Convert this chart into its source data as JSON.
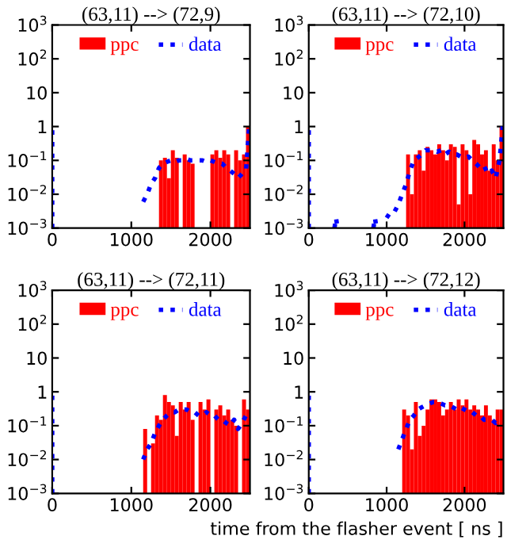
{
  "chart_data": [
    {
      "type": "histogram",
      "title": "(63,11) --> (72,9)",
      "log": "y",
      "xlim": [
        0,
        2500
      ],
      "xticks": [
        0,
        1000,
        2000
      ],
      "ylim": [
        0.001,
        1000
      ],
      "yticks": [
        {
          "value": 0.001,
          "label": "10$^{−3}$"
        },
        {
          "value": 0.01,
          "label": "10$^{−2}$"
        },
        {
          "value": 0.1,
          "label": "10$^{−1}$"
        },
        1,
        10,
        {
          "value": 100,
          "label": "10$^{2}$"
        },
        {
          "value": 1000,
          "label": "10$^{3}$"
        }
      ],
      "legend": "top",
      "grid": false,
      "series": [
        {
          "name": "ppc",
          "color": "#ff0000",
          "bins": [
            1350,
            1400,
            1450,
            1500,
            1550,
            1600,
            1650,
            1700,
            1750,
            1800,
            1850,
            1900,
            1950,
            2000,
            2050,
            2100,
            2150,
            2200,
            2250,
            2300,
            2350,
            2400,
            2450,
            2500
          ],
          "values": [
            0.1,
            0.12,
            0.03,
            0.2,
            0.12,
            null,
            0.15,
            0.1,
            0.08,
            null,
            null,
            null,
            null,
            0.15,
            0.2,
            0.12,
            0.2,
            0.15,
            null,
            0.2,
            0.1,
            0.15,
            1
          ]
        },
        {
          "name": "data",
          "type": "line",
          "line_style": "dotted",
          "color": "#0000ff",
          "x": [
            0,
            0,
            20,
            1150,
            1200,
            1250,
            1300,
            1350,
            1400,
            1450,
            1500,
            1550,
            1600,
            1650,
            1700,
            1750,
            1800,
            1850,
            1900,
            1950,
            2000,
            2050,
            2100,
            2150,
            2200,
            2250,
            2300,
            2350,
            2400,
            2450,
            2490
          ],
          "values": [
            0.001,
            1,
            null,
            0.006,
            0.01,
            0.02,
            0.03,
            0.06,
            0.08,
            0.09,
            0.1,
            0.09,
            0.1,
            0.1,
            0.11,
            0.1,
            0.1,
            0.1,
            0.1,
            0.09,
            0.1,
            0.09,
            0.08,
            0.08,
            0.06,
            0.05,
            0.04,
            0.03,
            0.04,
            0.05,
            1
          ]
        }
      ]
    },
    {
      "type": "histogram",
      "title": "(63,11) --> (72,10)",
      "log": "y",
      "xlim": [
        0,
        2500
      ],
      "xticks": [
        0,
        1000,
        2000
      ],
      "ylim": [
        0.001,
        1000
      ],
      "yticks": [
        {
          "value": 0.001,
          "label": "10$^{−3}$"
        },
        {
          "value": 0.01,
          "label": "10$^{−2}$"
        },
        {
          "value": 0.1,
          "label": "10$^{−1}$"
        },
        1,
        10,
        {
          "value": 100,
          "label": "10$^{2}$"
        },
        {
          "value": 1000,
          "label": "10$^{3}$"
        }
      ],
      "legend": "top",
      "grid": false,
      "series": [
        {
          "name": "ppc",
          "color": "#ff0000",
          "bins": [
            1250,
            1300,
            1350,
            1400,
            1450,
            1500,
            1550,
            1600,
            1650,
            1700,
            1750,
            1800,
            1850,
            1900,
            1950,
            2000,
            2050,
            2100,
            2150,
            2200,
            2250,
            2300,
            2350,
            2400,
            2450,
            2500
          ],
          "values": [
            0.15,
            0.01,
            0.15,
            0.2,
            0.05,
            0.25,
            0.2,
            0.15,
            0.3,
            0.2,
            0.1,
            0.3,
            0.25,
            0.005,
            0.3,
            0.2,
            0.01,
            0.4,
            0.3,
            0.15,
            0.2,
            0.05,
            0.3,
            0.1,
            1
          ]
        },
        {
          "name": "data",
          "type": "line",
          "line_style": "dotted",
          "color": "#0000ff",
          "x": [
            0,
            0,
            20,
            330,
            350,
            370,
            400,
            830,
            850,
            870,
            900,
            1000,
            1050,
            1100,
            1150,
            1200,
            1250,
            1300,
            1350,
            1400,
            1450,
            1500,
            1550,
            1600,
            1650,
            1700,
            1750,
            1800,
            1850,
            1900,
            1950,
            2000,
            2050,
            2100,
            2150,
            2200,
            2250,
            2300,
            2350,
            2400,
            2450,
            2490
          ],
          "values": [
            0.001,
            1,
            null,
            0.001,
            0.002,
            0.001,
            null,
            0.001,
            0.002,
            0.001,
            null,
            0.002,
            0.003,
            0.003,
            0.005,
            0.01,
            0.02,
            0.05,
            0.1,
            0.12,
            0.15,
            0.2,
            0.2,
            0.2,
            0.18,
            0.2,
            0.15,
            0.18,
            0.15,
            0.15,
            0.13,
            0.12,
            0.13,
            0.1,
            0.08,
            0.06,
            0.07,
            0.04,
            0.05,
            0.03,
            0.1,
            1
          ]
        }
      ]
    },
    {
      "type": "histogram",
      "title": "(63,11) --> (72,11)",
      "log": "y",
      "xlim": [
        0,
        2500
      ],
      "xticks": [
        0,
        1000,
        2000
      ],
      "ylim": [
        0.001,
        1000
      ],
      "yticks": [
        {
          "value": 0.001,
          "label": "10$^{−3}$"
        },
        {
          "value": 0.01,
          "label": "10$^{−2}$"
        },
        {
          "value": 0.1,
          "label": "10$^{−1}$"
        },
        1,
        10,
        {
          "value": 100,
          "label": "10$^{2}$"
        },
        {
          "value": 1000,
          "label": "10$^{3}$"
        }
      ],
      "legend": "top",
      "grid": false,
      "series": [
        {
          "name": "ppc",
          "color": "#ff0000",
          "bins": [
            1150,
            1200,
            1250,
            1300,
            1350,
            1400,
            1450,
            1500,
            1550,
            1600,
            1650,
            1700,
            1750,
            1800,
            1850,
            1900,
            1950,
            2000,
            2050,
            2100,
            2150,
            2200,
            2250,
            2300,
            2350,
            2400,
            2450,
            2500
          ],
          "values": [
            0.08,
            null,
            0.03,
            0.2,
            0.15,
            0.8,
            0.5,
            0.4,
            0.05,
            0.5,
            0.3,
            0.5,
            0.15,
            null,
            0.5,
            0.3,
            0.6,
            null,
            0.3,
            0.4,
            0.2,
            0.3,
            0.15,
            0.1,
            null,
            0.6,
            0.3
          ]
        },
        {
          "name": "data",
          "type": "line",
          "line_style": "dotted",
          "color": "#0000ff",
          "x": [
            0,
            0,
            20,
            1150,
            1200,
            1250,
            1300,
            1350,
            1400,
            1450,
            1500,
            1550,
            1600,
            1650,
            1700,
            1750,
            1800,
            1850,
            1900,
            1950,
            2000,
            2050,
            2100,
            2150,
            2200,
            2250,
            2300,
            2350,
            2400,
            2450
          ],
          "values": [
            0.001,
            1,
            null,
            0.01,
            0.02,
            0.03,
            0.06,
            0.1,
            0.15,
            0.2,
            0.25,
            0.25,
            0.3,
            0.3,
            0.3,
            0.25,
            0.25,
            0.2,
            0.2,
            0.25,
            0.2,
            0.2,
            0.15,
            0.15,
            0.12,
            0.1,
            0.15,
            0.08,
            0.12,
            0.2
          ]
        }
      ]
    },
    {
      "type": "histogram",
      "title": "(63,11) --> (72,12)",
      "xlabel": "time from the flasher event [ ns ]",
      "log": "y",
      "xlim": [
        0,
        2500
      ],
      "xticks": [
        0,
        1000,
        2000
      ],
      "ylim": [
        0.001,
        1000
      ],
      "yticks": [
        {
          "value": 0.001,
          "label": "10$^{−3}$"
        },
        {
          "value": 0.01,
          "label": "10$^{−2}$"
        },
        {
          "value": 0.1,
          "label": "10$^{−1}$"
        },
        1,
        10,
        {
          "value": 100,
          "label": "10$^{2}$"
        },
        {
          "value": 1000,
          "label": "10$^{3}$"
        }
      ],
      "legend": "top",
      "grid": false,
      "series": [
        {
          "name": "ppc",
          "color": "#ff0000",
          "bins": [
            1200,
            1250,
            1300,
            1350,
            1400,
            1450,
            1500,
            1550,
            1600,
            1650,
            1700,
            1750,
            1800,
            1850,
            1900,
            1950,
            2000,
            2050,
            2100,
            2150,
            2200,
            2250,
            2300,
            2350,
            2400,
            2450,
            2500
          ],
          "values": [
            0.3,
            0.2,
            0.02,
            0.5,
            0.05,
            0.1,
            0.3,
            0.6,
            0.6,
            0.5,
            0.2,
            0.3,
            0.5,
            0.3,
            0.6,
            0.4,
            0.6,
            0.3,
            0.4,
            0.3,
            0.2,
            0.4,
            0.2,
            0.15,
            0.3,
            0.3
          ]
        },
        {
          "name": "data",
          "type": "line",
          "line_style": "dotted",
          "color": "#0000ff",
          "x": [
            0,
            0,
            20,
            1150,
            1200,
            1250,
            1300,
            1350,
            1400,
            1450,
            1500,
            1550,
            1600,
            1650,
            1700,
            1750,
            1800,
            1850,
            1900,
            1950,
            2000,
            2050,
            2100,
            2150,
            2200,
            2250,
            2300,
            2350,
            2400,
            2450
          ],
          "values": [
            0.001,
            1,
            null,
            0.02,
            0.04,
            0.08,
            0.15,
            0.2,
            0.3,
            0.35,
            0.4,
            0.45,
            0.5,
            0.5,
            0.45,
            0.4,
            0.4,
            0.35,
            0.3,
            0.35,
            0.3,
            0.25,
            0.25,
            0.2,
            0.2,
            0.15,
            0.15,
            0.15,
            0.12,
            0.15
          ]
        }
      ]
    }
  ]
}
